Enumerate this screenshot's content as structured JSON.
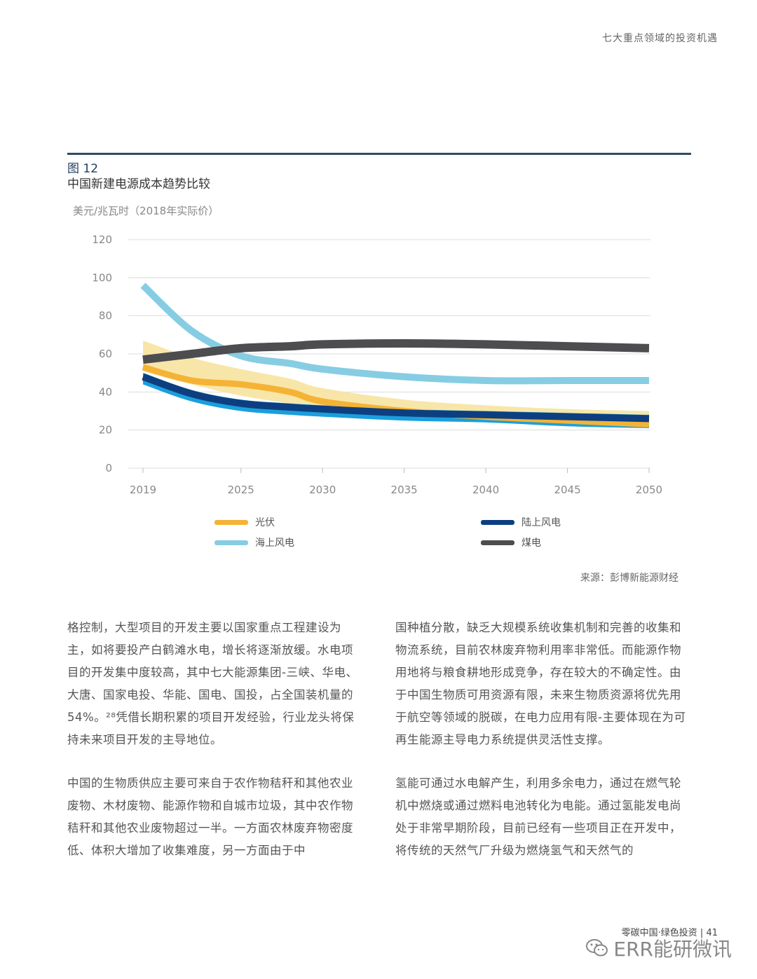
{
  "header": {
    "section_title": "七大重点领域的投资机遇"
  },
  "figure": {
    "number": "图 12",
    "title": "中国新建电源成本趋势比较",
    "unit": "美元/兆瓦时（2018年实际价）",
    "source": "来源：彭博新能源财经"
  },
  "legend": {
    "pv": "光伏",
    "onshore": "陆上风电",
    "offshore": "海上风电",
    "coal": "煤电"
  },
  "colors": {
    "pv": "#f5b335",
    "pv_band": "#f7e3a0",
    "onshore": "#0d3f80",
    "onshore_band": "#1a9fdc",
    "offshore": "#86cde3",
    "coal": "#4d4d4f"
  },
  "chart_data": {
    "type": "line",
    "ylabel": "美元/兆瓦时（2018年实际价）",
    "ylim": [
      0,
      120
    ],
    "yticks": [
      "0",
      "20",
      "40",
      "60",
      "80",
      "100",
      "120"
    ],
    "xlim": [
      2019,
      2050
    ],
    "xticks": [
      "2019",
      "2025",
      "2030",
      "2035",
      "2040",
      "2045",
      "2050"
    ],
    "grid": true,
    "x": [
      2019,
      2022,
      2025,
      2028,
      2030,
      2035,
      2040,
      2045,
      2050
    ],
    "series": [
      {
        "name": "光伏",
        "key": "pv",
        "values": [
          53,
          46,
          44,
          40,
          35,
          30,
          27,
          25,
          23
        ],
        "band_low": [
          51,
          44,
          38,
          34,
          32,
          30,
          28,
          27,
          26
        ],
        "band_high": [
          67,
          58,
          52,
          47,
          42,
          36,
          33,
          31,
          30
        ]
      },
      {
        "name": "陆上风电",
        "key": "onshore",
        "values": [
          48,
          39,
          34,
          32,
          31,
          29,
          28,
          27,
          26
        ],
        "band_low": [
          44,
          35,
          30,
          28,
          27,
          25,
          24,
          22,
          21
        ],
        "band_high": [
          50,
          41,
          36,
          34,
          33,
          31,
          30,
          29,
          28
        ]
      },
      {
        "name": "海上风电",
        "key": "offshore",
        "values": [
          96,
          72,
          59,
          55,
          52,
          48,
          46,
          46,
          46
        ]
      },
      {
        "name": "煤电",
        "key": "coal",
        "values": [
          57,
          60,
          63,
          64,
          65,
          65.5,
          65,
          64,
          63
        ]
      }
    ]
  },
  "body": {
    "left": [
      "格控制，大型项目的开发主要以国家重点工程建设为主，如将要投产白鹤滩水电，增长将逐渐放缓。水电项目的开发集中度较高，其中七大能源集团-三峡、华电、大唐、国家电投、华能、国电、国投，占全国装机量的54%。²⁸凭借长期积累的项目开发经验，行业龙头将保持未来项目开发的主导地位。",
      "中国的生物质供应主要可来自于农作物秸秆和其他农业废物、木材废物、能源作物和自城市垃圾，其中农作物秸秆和其他农业废物超过一半。一方面农林废弃物密度低、体积大增加了收集难度，另一方面由于中"
    ],
    "right": [
      "国种植分散，缺乏大规模系统收集机制和完善的收集和物流系统，目前农林废弃物利用率非常低。而能源作物用地将与粮食耕地形成竞争，存在较大的不确定性。由于中国生物质可用资源有限，未来生物质资源将优先用于航空等领域的脱碳，在电力应用有限-主要体现在为可再生能源主导电力系统提供灵活性支撑。",
      "氢能可通过水电解产生，利用多余电力，通过在燃气轮机中燃烧或通过燃料电池转化为电能。通过氢能发电尚处于非常早期阶段，目前已经有一些项目正在开发中，将传统的天然气厂升级为燃烧氢气和天然气的"
    ]
  },
  "footer": {
    "text": "零碳中国·绿色投资 | 41"
  },
  "watermark": {
    "text": "ERR能研微讯"
  }
}
